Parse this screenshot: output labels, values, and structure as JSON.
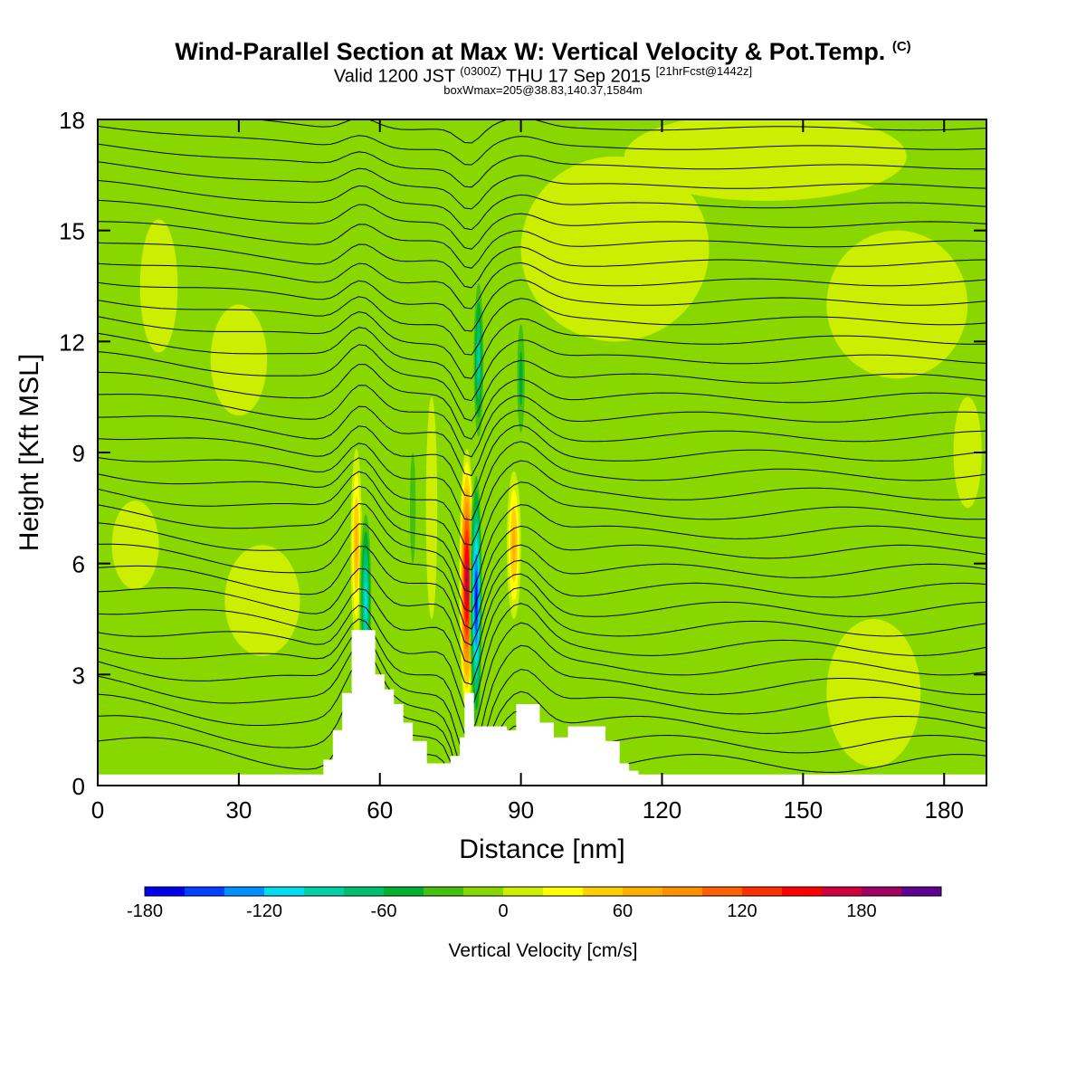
{
  "header": {
    "title": "Wind-Parallel Section at Max W: Vertical Velocity & Pot.Temp.",
    "title_mark": "(C)",
    "valid_a": "Valid 1200 JST",
    "valid_z": "(0300Z)",
    "valid_b": "THU 17 Sep 2015",
    "valid_fcst": "[21hrFcst@1442z]",
    "boxline": "boxWmax=205@38.83,140.37,1584m"
  },
  "chart_data": {
    "type": "heatmap",
    "xlabel": "Distance [nm]",
    "ylabel": "Height [Kft MSL]",
    "xlim": [
      0,
      189
    ],
    "ylim": [
      0,
      18
    ],
    "xticks": [
      0,
      30,
      60,
      90,
      120,
      150,
      180
    ],
    "yticks": [
      0,
      3,
      6,
      9,
      12,
      15,
      18
    ],
    "xtick_labels": [
      "0",
      "30",
      "60",
      "90",
      "120",
      "150",
      "180"
    ],
    "ytick_labels": [
      "0",
      "3",
      "6",
      "9",
      "12",
      "15",
      "18"
    ],
    "colorbar": {
      "title": "Vertical Velocity [cm/s]",
      "min": -180,
      "max": 220,
      "step": 20,
      "tick_values": [
        -180,
        -120,
        -60,
        0,
        60,
        120,
        180
      ],
      "tick_labels": [
        "-180",
        "-120",
        "-60",
        "0",
        "60",
        "120",
        "180"
      ],
      "colors": [
        "#0000ee",
        "#0040ff",
        "#0090ff",
        "#00ddee",
        "#00d0a8",
        "#00c070",
        "#00b030",
        "#44c010",
        "#88d800",
        "#ccee00",
        "#ffff00",
        "#ffd000",
        "#ffb000",
        "#ff9000",
        "#ff6000",
        "#ff3000",
        "#ff0000",
        "#d00040",
        "#a00060",
        "#600090"
      ]
    },
    "background_color": "#88d800",
    "terrain_profile": [
      [
        0,
        0.3
      ],
      [
        20,
        0.3
      ],
      [
        46,
        0.3
      ],
      [
        48,
        0.7
      ],
      [
        50,
        1.5
      ],
      [
        52,
        2.5
      ],
      [
        54,
        4.2
      ],
      [
        57,
        4.2
      ],
      [
        59,
        3.0
      ],
      [
        61,
        2.6
      ],
      [
        63,
        2.2
      ],
      [
        65,
        1.7
      ],
      [
        67,
        1.2
      ],
      [
        70,
        0.6
      ],
      [
        73,
        0.6
      ],
      [
        75,
        0.8
      ],
      [
        77,
        1.3
      ],
      [
        78,
        2.5
      ],
      [
        80,
        1.6
      ],
      [
        84,
        1.6
      ],
      [
        87,
        1.5
      ],
      [
        89,
        2.2
      ],
      [
        92,
        2.2
      ],
      [
        94,
        1.7
      ],
      [
        97,
        1.3
      ],
      [
        100,
        1.6
      ],
      [
        104,
        1.6
      ],
      [
        108,
        1.2
      ],
      [
        111,
        0.6
      ],
      [
        113,
        0.4
      ],
      [
        115,
        0.3
      ],
      [
        189,
        0.3
      ]
    ],
    "w_features": [
      {
        "x": 55,
        "y": 6.5,
        "rx": 1.2,
        "ry": 2.6,
        "w": 80
      },
      {
        "x": 57,
        "y": 5.0,
        "rx": 1.4,
        "ry": 2.8,
        "w": -110
      },
      {
        "x": 78.5,
        "y": 5.5,
        "rx": 1.6,
        "ry": 3.6,
        "w": 205
      },
      {
        "x": 80.5,
        "y": 5.0,
        "rx": 1.4,
        "ry": 3.8,
        "w": -170
      },
      {
        "x": 81,
        "y": 11.5,
        "rx": 1.3,
        "ry": 2.6,
        "w": -90
      },
      {
        "x": 88.5,
        "y": 6.5,
        "rx": 1.5,
        "ry": 2.0,
        "w": 80
      },
      {
        "x": 90,
        "y": 11.0,
        "rx": 1.2,
        "ry": 2.2,
        "w": -60
      },
      {
        "x": 67,
        "y": 7.5,
        "rx": 1.2,
        "ry": 3.0,
        "w": -40
      },
      {
        "x": 71,
        "y": 7.5,
        "rx": 1.2,
        "ry": 3.0,
        "w": 20
      },
      {
        "x": 13,
        "y": 13.5,
        "rx": 4,
        "ry": 1.8,
        "w": 20
      },
      {
        "x": 30,
        "y": 11.5,
        "rx": 6,
        "ry": 1.5,
        "w": 15
      },
      {
        "x": 110,
        "y": 14.5,
        "rx": 20,
        "ry": 2.5,
        "w": 15
      },
      {
        "x": 170,
        "y": 13.0,
        "rx": 15,
        "ry": 2.0,
        "w": 15
      },
      {
        "x": 35,
        "y": 5.0,
        "rx": 8,
        "ry": 1.5,
        "w": 15
      },
      {
        "x": 8,
        "y": 6.5,
        "rx": 5,
        "ry": 1.2,
        "w": 15
      },
      {
        "x": 165,
        "y": 2.5,
        "rx": 10,
        "ry": 2.0,
        "w": 15
      },
      {
        "x": 185,
        "y": 9.0,
        "rx": 3,
        "ry": 1.5,
        "w": 15
      },
      {
        "x": 142,
        "y": 17.0,
        "rx": 30,
        "ry": 1.2,
        "w": 15
      },
      {
        "x": 130,
        "y": 6.0,
        "rx": 8,
        "ry": 3.0,
        "w": -15
      }
    ]
  }
}
